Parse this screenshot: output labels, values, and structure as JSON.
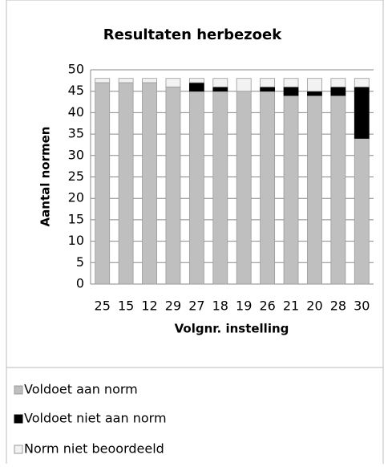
{
  "chart_data": {
    "type": "stacked_bar",
    "title": "Resultaten herbezoek",
    "x_label": "Volgnr.  instelling",
    "y_label": "Aantal normen",
    "categories": [
      "25",
      "15",
      "12",
      "29",
      "27",
      "18",
      "19",
      "26",
      "21",
      "20",
      "28",
      "30"
    ],
    "series": [
      {
        "name": "Voldoet aan norm",
        "color": "#bfbfbf",
        "values": [
          47,
          47,
          47,
          46,
          45,
          45,
          45,
          45,
          44,
          44,
          44,
          34
        ]
      },
      {
        "name": "Voldoet niet aan norm",
        "color": "#000000",
        "values": [
          0,
          0,
          0,
          0,
          2,
          1,
          0,
          1,
          2,
          1,
          2,
          12
        ]
      },
      {
        "name": "Norm niet beoordeeld",
        "color": "#f2f2f2",
        "values": [
          1,
          1,
          1,
          2,
          1,
          2,
          3,
          2,
          2,
          3,
          2,
          2
        ]
      }
    ],
    "ylim": [
      0,
      50
    ],
    "yticks": [
      0,
      5,
      10,
      15,
      20,
      25,
      30,
      35,
      40,
      45,
      50
    ],
    "grid": true
  }
}
